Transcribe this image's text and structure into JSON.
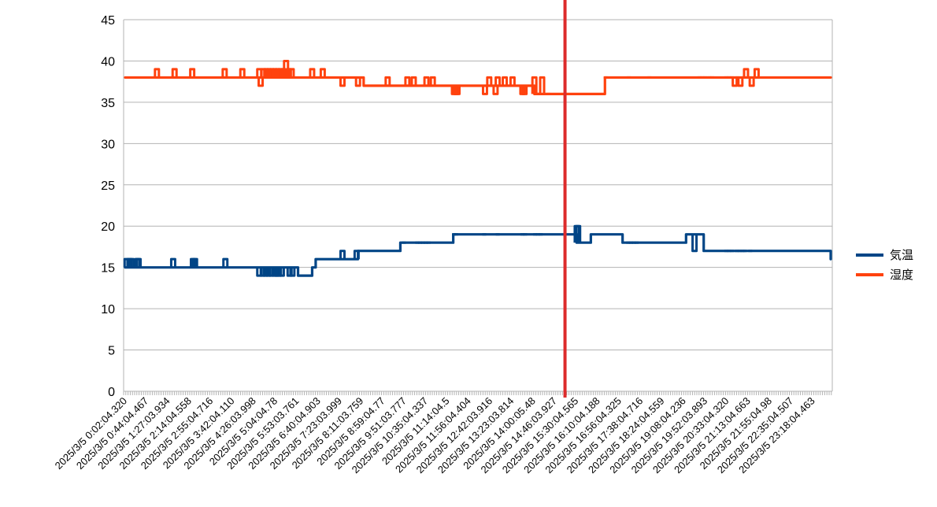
{
  "chart_data": {
    "type": "line",
    "title": "",
    "xlabel": "",
    "ylabel": "",
    "ylim": [
      0,
      45
    ],
    "y_ticks": [
      "0",
      "5",
      "10",
      "15",
      "20",
      "25",
      "30",
      "35",
      "40",
      "45"
    ],
    "grid": "horizontal",
    "legend_position": "right",
    "x_tick_labels": [
      "2025/3/5 0:02:04.320",
      "2025/3/5 0:44:04.467",
      "2025/3/5 1:27:03.934",
      "2025/3/5 2:14:04.558",
      "2025/3/5 2:55:04.716",
      "2025/3/5 3:42:04.110",
      "2025/3/5 4:26:03.998",
      "2025/3/5 5:04:04.78",
      "2025/3/5 5:53:03.761",
      "2025/3/5 6:40:04.903",
      "2025/3/5 7:23:03.999",
      "2025/3/5 8:11:03.759",
      "2025/3/5 8:59:04.77",
      "2025/3/5 9:51:03.777",
      "2025/3/5 10:35:04.337",
      "2025/3/5 11:14:04.5",
      "2025/3/5 11:56:04.404",
      "2025/3/5 12:42:03.916",
      "2025/3/5 13:23:03.814",
      "2025/3/5 14:00:05.48",
      "2025/3/5 14:46:03.927",
      "2025/3/5 15:30:04.565",
      "2025/3/5 16:10:04.188",
      "2025/3/5 16:56:04.325",
      "2025/3/5 17:38:04.716",
      "2025/3/5 18:24:04.559",
      "2025/3/5 19:08:04.236",
      "2025/3/5 19:52:03.893",
      "2025/3/5 20:33:04.320",
      "2025/3/5 21:13:04.663",
      "2025/3/5 21:55:04.98",
      "2025/3/5 22:35:04.507",
      "2025/3/5 23:18:04.463"
    ],
    "series": [
      {
        "name": "気温",
        "color": "#004586",
        "segments": [
          [
            0,
            15
          ],
          [
            245,
            14
          ],
          [
            265,
            15
          ],
          [
            270,
            16
          ],
          [
            330,
            17
          ],
          [
            660,
            19
          ],
          [
            640,
            18
          ],
          [
            390,
            18
          ],
          [
            705,
            18
          ],
          [
            465,
            19
          ],
          [
            795,
            19
          ],
          [
            820,
            17
          ],
          [
            1000,
            16
          ]
        ],
        "spikes": [
          [
            2,
            16
          ],
          [
            6,
            16
          ],
          [
            9,
            16
          ],
          [
            17,
            16
          ],
          [
            19,
            16
          ],
          [
            68,
            16
          ],
          [
            96,
            16
          ],
          [
            99,
            16
          ],
          [
            142,
            16
          ],
          [
            190,
            14
          ],
          [
            195,
            14
          ],
          [
            199,
            14
          ],
          [
            203,
            14
          ],
          [
            207,
            14
          ],
          [
            212,
            14
          ],
          [
            215,
            14
          ],
          [
            218,
            14
          ],
          [
            222,
            14
          ],
          [
            233,
            14
          ],
          [
            237,
            14
          ],
          [
            308,
            17
          ],
          [
            328,
            17
          ],
          [
            395,
            18
          ],
          [
            414,
            18
          ],
          [
            418,
            18
          ],
          [
            422,
            18
          ],
          [
            426,
            18
          ],
          [
            430,
            18
          ],
          [
            466,
            19
          ],
          [
            469,
            19
          ],
          [
            509,
            19
          ],
          [
            528,
            19
          ],
          [
            563,
            19
          ],
          [
            567,
            19
          ],
          [
            581,
            19
          ],
          [
            585,
            19
          ],
          [
            589,
            19
          ],
          [
            640,
            20
          ],
          [
            642,
            20
          ],
          [
            713,
            18
          ],
          [
            717,
            18
          ],
          [
            721,
            18
          ],
          [
            725,
            18
          ],
          [
            807,
            17
          ],
          [
            852,
            17
          ],
          [
            856,
            17
          ],
          [
            860,
            17
          ],
          [
            867,
            17
          ],
          [
            871,
            17
          ],
          [
            875,
            17
          ],
          [
            878,
            17
          ],
          [
            886,
            17
          ]
        ]
      },
      {
        "name": "湿度",
        "color": "#ff420e",
        "segments": [
          [
            0,
            38
          ],
          [
            330,
            38
          ],
          [
            338,
            37
          ],
          [
            565,
            37
          ],
          [
            580,
            36
          ],
          [
            680,
            38
          ],
          [
            1000,
            38
          ]
        ],
        "spikes": [
          [
            45,
            39
          ],
          [
            70,
            39
          ],
          [
            95,
            39
          ],
          [
            141,
            39
          ],
          [
            166,
            39
          ],
          [
            190,
            39
          ],
          [
            192,
            37
          ],
          [
            196,
            39
          ],
          [
            200,
            39
          ],
          [
            204,
            39
          ],
          [
            208,
            39
          ],
          [
            212,
            39
          ],
          [
            216,
            39
          ],
          [
            220,
            39
          ],
          [
            224,
            39
          ],
          [
            228,
            40
          ],
          [
            232,
            39
          ],
          [
            236,
            39
          ],
          [
            265,
            39
          ],
          [
            280,
            39
          ],
          [
            308,
            37
          ],
          [
            330,
            37
          ],
          [
            372,
            38
          ],
          [
            400,
            38
          ],
          [
            409,
            38
          ],
          [
            427,
            38
          ],
          [
            436,
            38
          ],
          [
            466,
            36
          ],
          [
            469,
            36
          ],
          [
            471,
            36
          ],
          [
            510,
            36
          ],
          [
            516,
            38
          ],
          [
            525,
            36
          ],
          [
            528,
            38
          ],
          [
            538,
            38
          ],
          [
            549,
            38
          ],
          [
            563,
            36
          ],
          [
            566,
            36
          ],
          [
            580,
            38
          ],
          [
            583,
            36
          ],
          [
            587,
            36
          ],
          [
            591,
            38
          ],
          [
            600,
            36
          ],
          [
            681,
            38
          ],
          [
            714,
            38
          ],
          [
            743,
            38
          ],
          [
            814,
            38
          ],
          [
            818,
            38
          ],
          [
            822,
            38
          ],
          [
            828,
            38
          ],
          [
            832,
            38
          ],
          [
            852,
            38
          ],
          [
            856,
            38
          ],
          [
            860,
            38
          ],
          [
            864,
            37
          ],
          [
            868,
            38
          ],
          [
            872,
            37
          ],
          [
            876,
            38
          ],
          [
            880,
            39
          ],
          [
            885,
            38
          ],
          [
            888,
            37
          ],
          [
            895,
            39
          ]
        ]
      }
    ],
    "annotations": [
      {
        "type": "vertical-marker",
        "color": "#dd2b2b",
        "x_index": 20.35
      }
    ]
  }
}
